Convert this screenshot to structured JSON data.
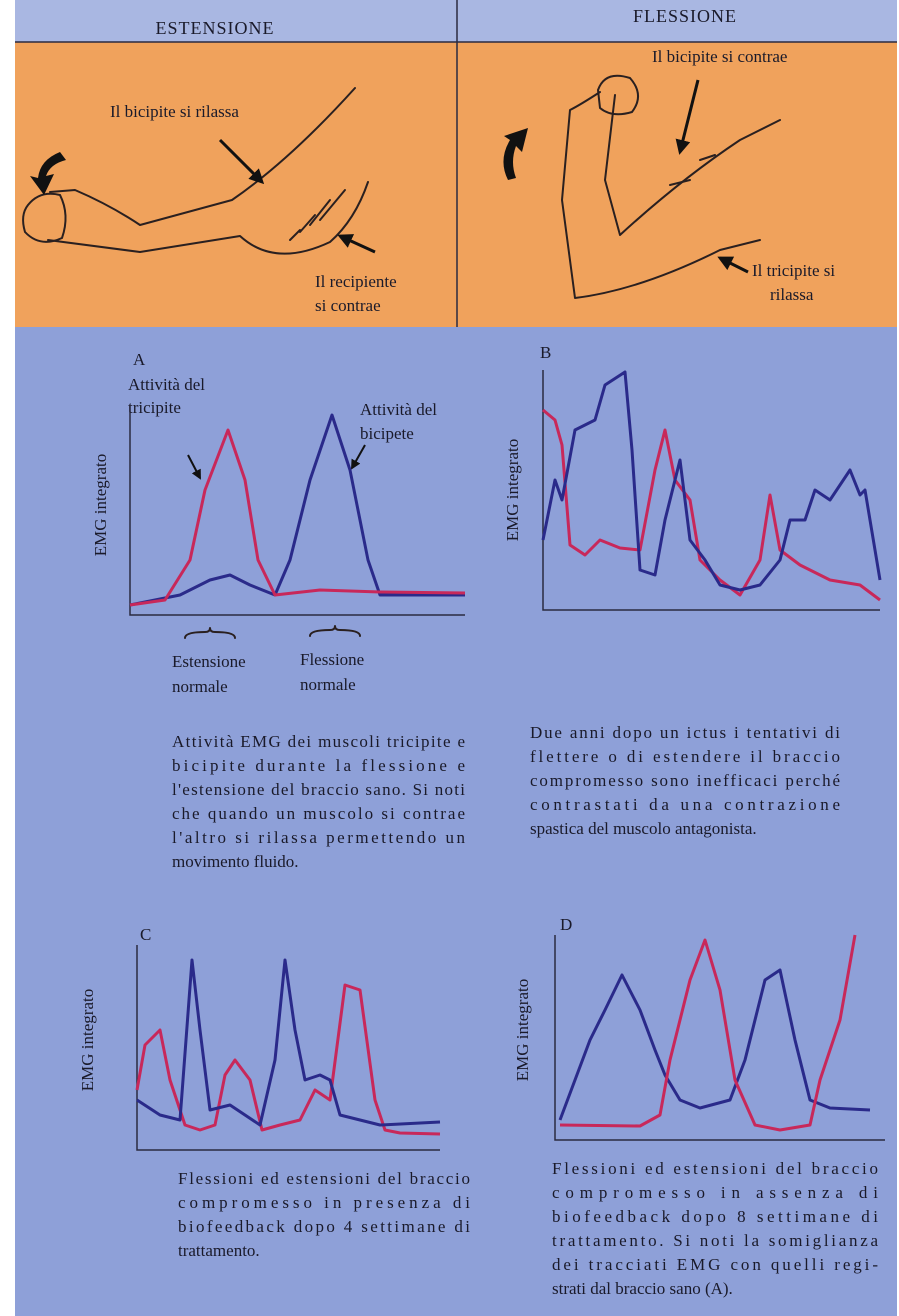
{
  "header": {
    "left": "ESTENSIONE",
    "right": "FLESSIONE"
  },
  "illustration": {
    "extension": {
      "biceps": "Il bicipite si rilassa",
      "triceps": [
        "Il recipiente",
        "si contrae"
      ]
    },
    "flexion": {
      "biceps": "Il bicipite si contrae",
      "triceps": [
        "Il tricipite si",
        "rilassa"
      ]
    }
  },
  "panels": [
    {
      "letter": "A",
      "y_label": "EMG integrato",
      "annotations": [
        [
          "Attività del",
          "tricipite"
        ],
        [
          "Attività del",
          "bicipete"
        ]
      ],
      "x_labels": [
        [
          "Estensione",
          "normale"
        ],
        [
          "Flessione",
          "normale"
        ]
      ],
      "caption": [
        "Attività EMG dei muscoli tricipite e",
        "bicipite durante la flessione e",
        "l'estensione del braccio sano. Si noti",
        "che quando un muscolo si contrae",
        "l'altro si rilassa permettendo un",
        "movimento fluido."
      ]
    },
    {
      "letter": "B",
      "y_label": "EMG integrato",
      "caption": [
        "Due anni dopo un ictus i tentativi di",
        "flettere o di estendere il braccio",
        "compromesso sono inefficaci perché",
        "contrastati da una contrazione",
        "spastica del muscolo antagonista."
      ]
    },
    {
      "letter": "C",
      "y_label": "EMG integrato",
      "caption": [
        "Flessioni ed estensioni del braccio",
        "compromesso in presenza di",
        "biofeedback dopo 4 settimane di",
        "trattamento."
      ]
    },
    {
      "letter": "D",
      "y_label": "EMG integrato",
      "caption": [
        "Flessioni ed estensioni del braccio",
        "compromesso in assenza di",
        "biofeedback dopo 8 settimane di",
        "trattamento. Si noti la somiglianza",
        "dei tracciati EMG con quelli regi-",
        "strati dal braccio sano (A)."
      ]
    }
  ]
}
